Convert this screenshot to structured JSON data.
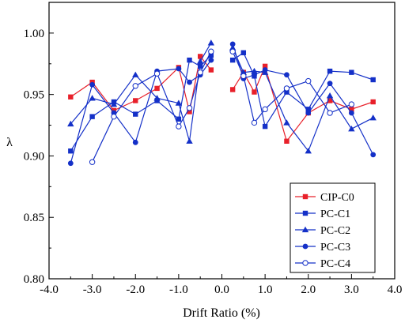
{
  "chart_data": {
    "type": "line",
    "xlabel": "Drift Ratio (%)",
    "ylabel": "λ",
    "xlim": [
      -4.0,
      4.0
    ],
    "ylim": [
      0.8,
      1.025
    ],
    "x_ticks": [
      "-4.0",
      "-3.0",
      "-2.0",
      "-1.0",
      "0.0",
      "1.0",
      "2.0",
      "3.0",
      "4.0"
    ],
    "y_ticks": [
      "0.80",
      "0.85",
      "0.90",
      "0.95",
      "1.00"
    ],
    "legend_position": "bottom-right",
    "series": [
      {
        "name": "CIP-C0",
        "color": "#e8202a",
        "marker": "square",
        "negative": {
          "x": [
            -3.5,
            -3.0,
            -2.5,
            -2.0,
            -1.5,
            -1.0,
            -0.75,
            -0.5,
            -0.25
          ],
          "y": [
            0.948,
            0.96,
            0.937,
            0.945,
            0.955,
            0.972,
            0.936,
            0.981,
            0.97
          ]
        },
        "positive": {
          "x": [
            0.25,
            0.5,
            0.75,
            1.0,
            1.5,
            2.0,
            2.5,
            3.0,
            3.5
          ],
          "y": [
            0.954,
            0.968,
            0.952,
            0.973,
            0.912,
            0.935,
            0.945,
            0.938,
            0.944
          ]
        }
      },
      {
        "name": "PC-C1",
        "color": "#1430c8",
        "marker": "square",
        "negative": {
          "x": [
            -3.5,
            -3.0,
            -2.5,
            -2.0,
            -1.5,
            -1.0,
            -0.75,
            -0.5,
            -0.25
          ],
          "y": [
            0.904,
            0.932,
            0.944,
            0.934,
            0.945,
            0.93,
            0.978,
            0.973,
            0.982
          ]
        },
        "positive": {
          "x": [
            0.25,
            0.5,
            0.75,
            1.0,
            1.5,
            2.0,
            2.5,
            3.0,
            3.5
          ],
          "y": [
            0.978,
            0.984,
            0.965,
            0.924,
            0.952,
            0.938,
            0.969,
            0.968,
            0.962
          ]
        }
      },
      {
        "name": "PC-C2",
        "color": "#1430c8",
        "marker": "triangle",
        "negative": {
          "x": [
            -3.5,
            -3.0,
            -2.5,
            -2.0,
            -1.5,
            -1.0,
            -0.75,
            -0.5,
            -0.25
          ],
          "y": [
            0.926,
            0.947,
            0.942,
            0.966,
            0.947,
            0.943,
            0.912,
            0.977,
            0.992
          ]
        },
        "positive": {
          "x": [
            0.25,
            0.5,
            0.75,
            1.0,
            1.5,
            2.0,
            2.5,
            3.0,
            3.5
          ],
          "y": [
            0.988,
            0.968,
            0.969,
            0.968,
            0.927,
            0.904,
            0.949,
            0.922,
            0.931
          ]
        }
      },
      {
        "name": "PC-C3",
        "color": "#1430c8",
        "marker": "circle",
        "negative": {
          "x": [
            -3.5,
            -3.0,
            -2.5,
            -2.0,
            -1.5,
            -1.0,
            -0.75,
            -0.5,
            -0.25
          ],
          "y": [
            0.894,
            0.958,
            0.935,
            0.911,
            0.969,
            0.971,
            0.96,
            0.966,
            0.978
          ]
        },
        "positive": {
          "x": [
            0.25,
            0.5,
            0.75,
            1.0,
            1.5,
            2.0,
            2.5,
            3.0,
            3.5
          ],
          "y": [
            0.991,
            0.963,
            0.966,
            0.97,
            0.966,
            0.935,
            0.959,
            0.935,
            0.901
          ]
        }
      },
      {
        "name": "PC-C4",
        "color": "#1430c8",
        "marker": "circle-open",
        "negative": {
          "x": [
            -3.0,
            -2.5,
            -2.0,
            -1.5,
            -1.0,
            -0.75,
            -0.5,
            -0.25
          ],
          "y": [
            0.895,
            0.932,
            0.957,
            0.967,
            0.924,
            0.939,
            0.968,
            0.985
          ]
        },
        "positive": {
          "x": [
            0.25,
            0.5,
            0.75,
            1.0,
            1.5,
            2.0,
            2.5,
            3.0
          ],
          "y": [
            0.985,
            0.965,
            0.927,
            0.938,
            0.955,
            0.961,
            0.935,
            0.942
          ]
        }
      }
    ]
  }
}
